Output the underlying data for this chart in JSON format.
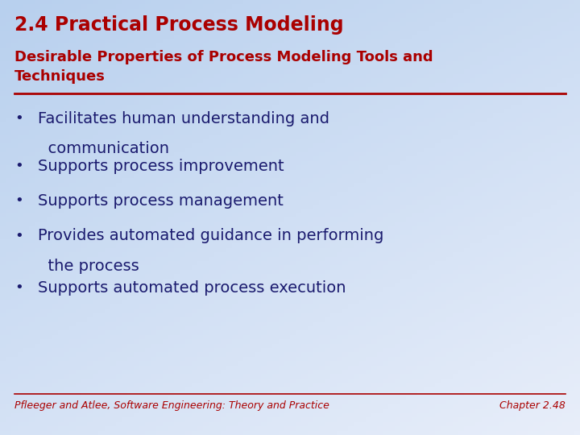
{
  "title": "2.4 Practical Process Modeling",
  "subtitle_line1": "Desirable Properties of Process Modeling Tools and",
  "subtitle_line2": "Techniques",
  "title_color": "#aa0000",
  "subtitle_color": "#aa0000",
  "title_fontsize": 17,
  "subtitle_fontsize": 13,
  "bullet_color": "#1a1a6e",
  "bullet_fontsize": 14,
  "bullet_symbol": "•",
  "bullets": [
    [
      "Facilitates human understanding and",
      "  communication"
    ],
    [
      "Supports process improvement"
    ],
    [
      "Supports process management"
    ],
    [
      "Provides automated guidance in performing",
      "  the process"
    ],
    [
      "Supports automated process execution"
    ]
  ],
  "footer_left": "Pfleeger and Atlee, Software Engineering: Theory and Practice",
  "footer_right": "Chapter 2.48",
  "footer_color": "#aa0000",
  "footer_fontsize": 9,
  "separator_color": "#aa0000",
  "title_font_weight": "bold",
  "subtitle_font_weight": "bold"
}
